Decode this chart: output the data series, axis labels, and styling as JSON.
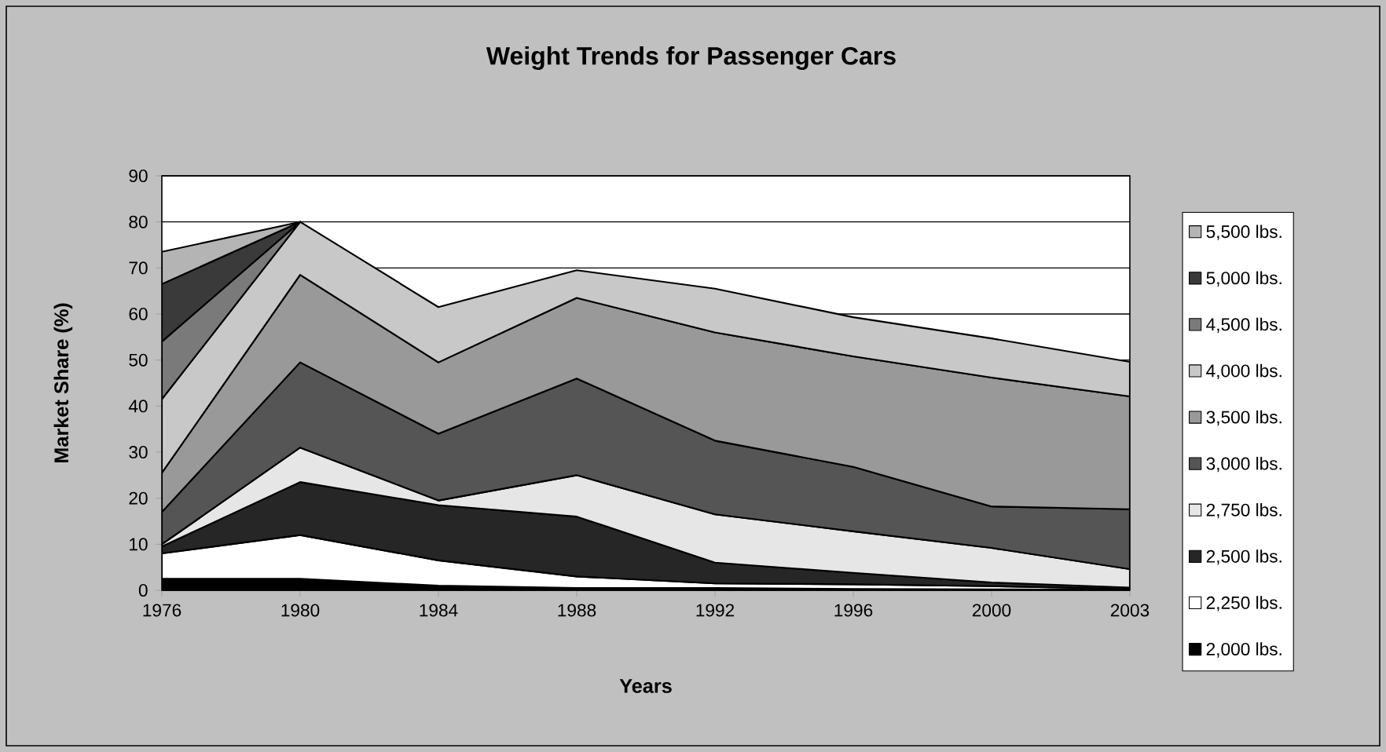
{
  "chart_data": {
    "type": "area",
    "title": "Weight Trends for Passenger Cars",
    "xlabel": "Years",
    "ylabel": "Market Share (%)",
    "categories": [
      "1976",
      "1980",
      "1984",
      "1988",
      "1992",
      "1996",
      "2000",
      "2003"
    ],
    "stacked": true,
    "ylim": [
      0,
      90
    ],
    "yticks": [
      0,
      10,
      20,
      30,
      40,
      50,
      60,
      70,
      80,
      90
    ],
    "grid": "y",
    "legend": "right",
    "series": [
      {
        "name": "2,000 lbs.",
        "color": "#000000",
        "values": [
          2.5,
          2.5,
          1,
          0.5,
          0.5,
          0.3,
          0.2,
          0.1
        ]
      },
      {
        "name": "2,250 lbs.",
        "color": "#ffffff",
        "values": [
          5.5,
          9.5,
          5.5,
          2.5,
          1,
          1,
          0.7,
          0.2
        ]
      },
      {
        "name": "2,500 lbs.",
        "color": "#262626",
        "values": [
          1.5,
          11.5,
          12,
          13,
          4.5,
          2.5,
          0.8,
          0.3
        ]
      },
      {
        "name": "2,750 lbs.",
        "color": "#e6e6e6",
        "values": [
          0.5,
          7.5,
          1,
          9,
          10.5,
          9,
          7.5,
          4
        ]
      },
      {
        "name": "3,000 lbs.",
        "color": "#555555",
        "values": [
          7,
          18.5,
          14.5,
          21,
          16,
          14,
          9,
          13
        ]
      },
      {
        "name": "3,500 lbs.",
        "color": "#999999",
        "values": [
          8.5,
          19,
          15.5,
          17.5,
          23.5,
          24,
          28,
          24.5
        ]
      },
      {
        "name": "4,000 lbs.",
        "color": "#c8c8c8",
        "values": [
          16,
          11.5,
          12,
          6,
          9.5,
          8.5,
          8.5,
          7.5
        ]
      },
      {
        "name": "4,500 lbs.",
        "color": "#7a7a7a",
        "values": [
          12.5,
          0,
          null,
          null,
          null,
          null,
          null,
          null
        ]
      },
      {
        "name": "5,000 lbs.",
        "color": "#3a3a3a",
        "values": [
          12.5,
          0,
          null,
          null,
          null,
          null,
          null,
          null
        ]
      },
      {
        "name": "5,500 lbs.",
        "color": "#b4b4b4",
        "values": [
          7,
          0,
          null,
          null,
          null,
          null,
          null,
          null
        ]
      }
    ]
  }
}
